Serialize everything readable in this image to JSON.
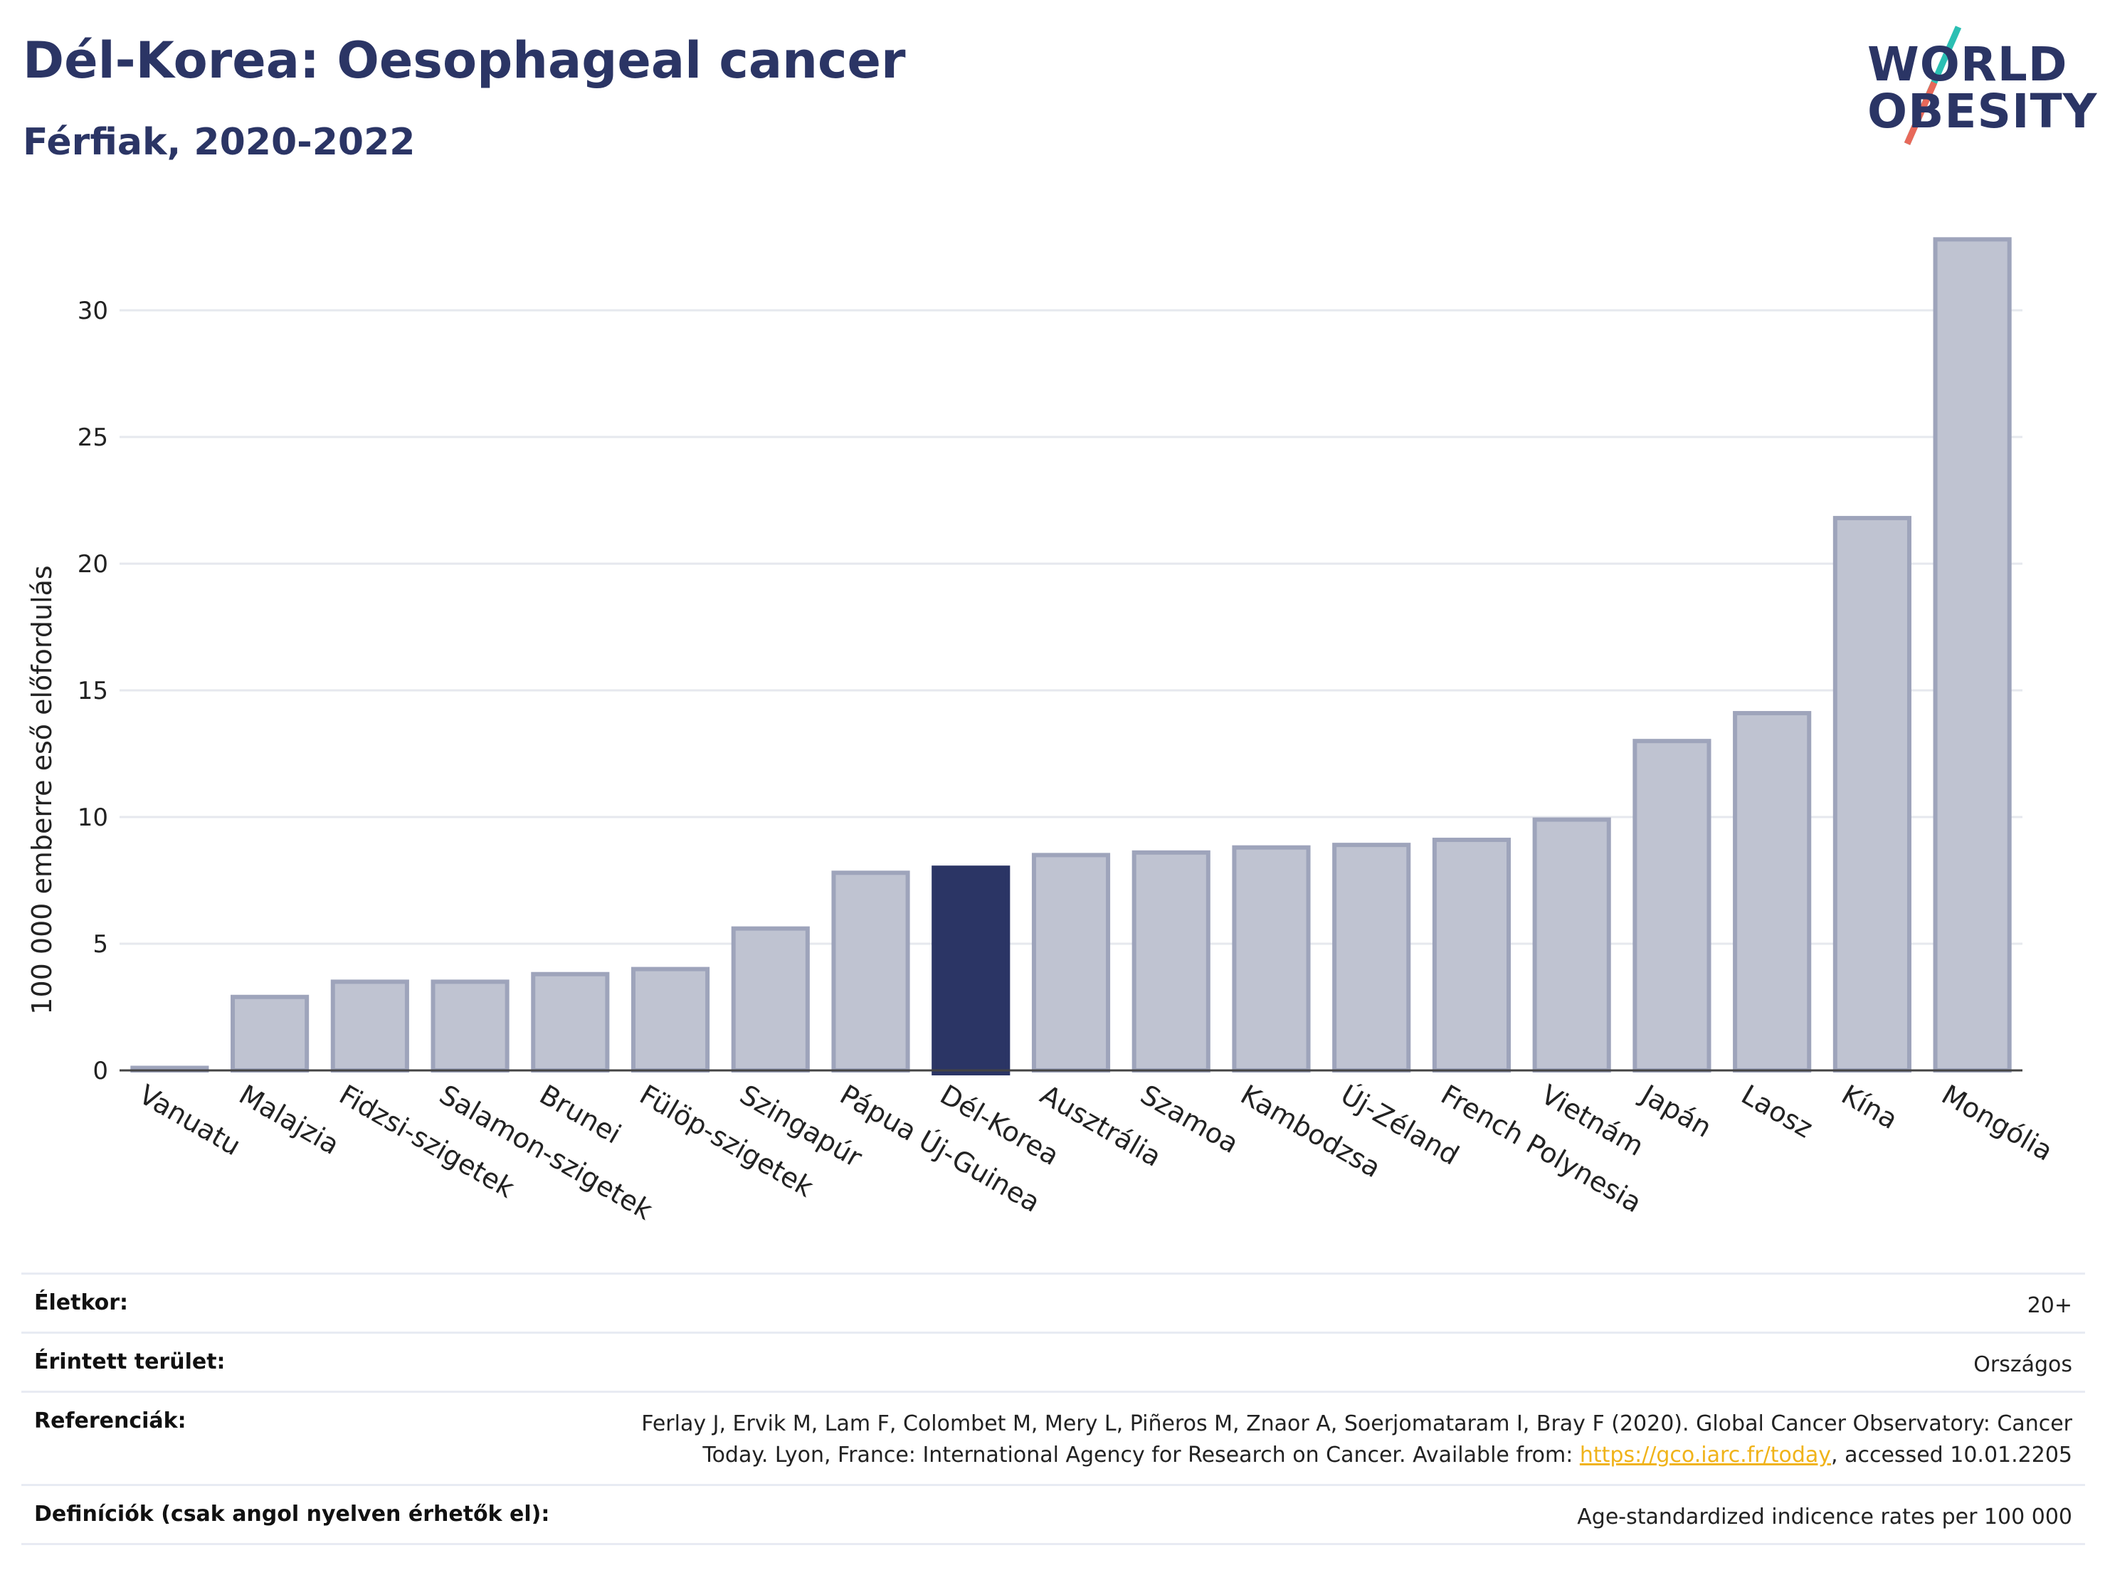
{
  "header": {
    "title": "Dél-Korea: Oesophageal cancer",
    "subtitle": "Férfiak, 2020-2022"
  },
  "logo": {
    "line1": "WORLD",
    "line2": "OBESITY"
  },
  "colors": {
    "highlight": "#2b3565",
    "bar_fill": "#bfc3d1",
    "bar_stroke": "#9ea4bb",
    "grid": "#e6e8ee",
    "logo_teal": "#2bbfb3",
    "logo_red": "#e8695a"
  },
  "chart_data": {
    "type": "bar",
    "title": "Dél-Korea: Oesophageal cancer",
    "subtitle": "Férfiak, 2020-2022",
    "xlabel": "",
    "ylabel": "100 000 emberre eső előfordulás",
    "ylim": [
      0,
      34
    ],
    "yticks": [
      0,
      5,
      10,
      15,
      20,
      25,
      30
    ],
    "grid": true,
    "highlight_category": "Dél-Korea",
    "categories": [
      "Vanuatu",
      "Malajzia",
      "Fidzsi-szigetek",
      "Salamon-szigetek",
      "Brunei",
      "Fülöp-szigetek",
      "Szingapúr",
      "Pápua Új-Guinea",
      "Dél-Korea",
      "Ausztrália",
      "Szamoa",
      "Kambodzsa",
      "Új-Zéland",
      "French Polynesia",
      "Vietnám",
      "Japán",
      "Laosz",
      "Kína",
      "Mongólia"
    ],
    "values": [
      0.1,
      2.9,
      3.5,
      3.5,
      3.8,
      4.0,
      5.6,
      7.8,
      8.0,
      8.5,
      8.6,
      8.8,
      8.9,
      9.1,
      9.9,
      13.0,
      14.1,
      21.8,
      32.8
    ]
  },
  "info": {
    "rows": [
      {
        "label": "Életkor:",
        "value": "20+"
      },
      {
        "label": "Érintett terület:",
        "value": "Országos"
      },
      {
        "label": "Referenciák:",
        "value_line1": "Ferlay J, Ervik M, Lam F, Colombet M, Mery L, Piñeros M, Znaor A, Soerjomataram I, Bray F (2020). Global Cancer Observatory: Cancer",
        "value_line2_pre": "Today. Lyon, France: International Agency for Research on Cancer. Available from: ",
        "link": "https://gco.iarc.fr/today",
        "value_line2_post": ", accessed 10.01.2205"
      },
      {
        "label": "Definíciók (csak angol nyelven érhetők el):",
        "value": "Age-standardized indicence rates per 100 000"
      }
    ]
  }
}
